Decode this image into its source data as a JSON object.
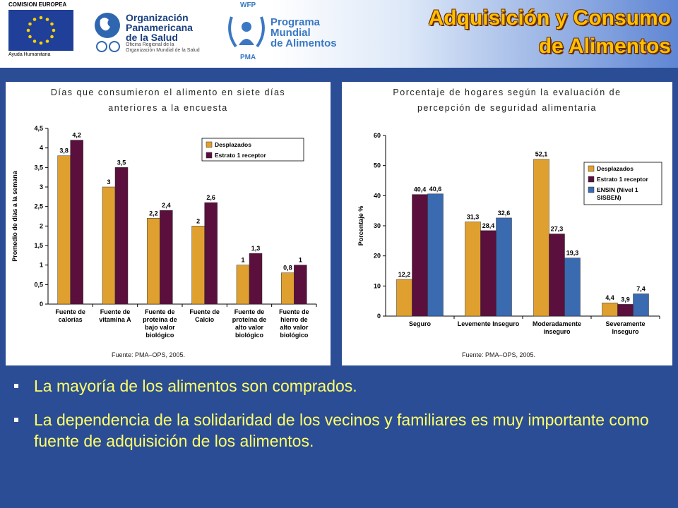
{
  "header": {
    "title_line1": "Adquisición y Consumo",
    "title_line2": "de Alimentos",
    "logos": {
      "eu_top": "COMISION EUROPEA",
      "eu_bottom": "Ayuda Humanitaria",
      "ops_line1": "Organización",
      "ops_line2": "Panamericana",
      "ops_line3": "de la Salud",
      "ops_sub1": "Oficina Regional de la",
      "ops_sub2": "Organización Mundial de la Salud",
      "wfp_top": "WFP",
      "wfp_line1": "Programa",
      "wfp_line2": "Mundial",
      "wfp_line3": "de Alimentos",
      "wfp_bottom": "PMA"
    },
    "colors": {
      "title": "#ffc000",
      "background": "#2b4d96",
      "bullet_text": "#ffff66"
    }
  },
  "chart_data": [
    {
      "type": "bar",
      "title_line1": "Días que consumieron el alimento en siete días",
      "title_line2": "anteriores a la encuesta",
      "ylabel": "Promedio de días a la semana",
      "ylim": [
        0,
        4.5
      ],
      "yticks": [
        "0",
        "0,5",
        "1",
        "1,5",
        "2",
        "2,5",
        "3",
        "3,5",
        "4",
        "4,5"
      ],
      "categories": [
        [
          "Fuente de",
          "calorías"
        ],
        [
          "Fuente de",
          "vitamina A"
        ],
        [
          "Fuente de",
          "proteína de",
          "bajo valor",
          "biológico"
        ],
        [
          "Fuente de",
          "Calcio"
        ],
        [
          "Fuente de",
          "proteína de",
          "alto valor",
          "biológico"
        ],
        [
          "Fuente de",
          "hierro de",
          "alto valor",
          "biológico"
        ]
      ],
      "series": [
        {
          "name": "Desplazados",
          "color": "#e0a030",
          "values": [
            3.8,
            3,
            2.2,
            2,
            1,
            0.8
          ],
          "labels": [
            "3,8",
            "3",
            "2,2",
            "2",
            "1",
            "0,8"
          ]
        },
        {
          "name": "Estrato 1 receptor",
          "color": "#5a0f3c",
          "values": [
            4.2,
            3.5,
            2.4,
            2.6,
            1.3,
            1
          ],
          "labels": [
            "4,2",
            "3,5",
            "2,4",
            "2,6",
            "1,3",
            "1"
          ]
        }
      ],
      "legend": "top-right",
      "source": "Fuente: PMA–OPS, 2005."
    },
    {
      "type": "bar",
      "title_line1": "Porcentaje de hogares según la evaluación de",
      "title_line2": "percepción de seguridad alimentaria",
      "ylabel": "Porcentaje %",
      "ylim": [
        0,
        60
      ],
      "yticks": [
        "0",
        "10",
        "20",
        "30",
        "40",
        "50",
        "60"
      ],
      "categories": [
        [
          "Seguro"
        ],
        [
          "Levemente Inseguro"
        ],
        [
          "Moderadamente",
          "inseguro"
        ],
        [
          "Severamente",
          "Inseguro"
        ]
      ],
      "series": [
        {
          "name": "Desplazados",
          "color": "#e0a030",
          "values": [
            12.2,
            31.3,
            52.1,
            4.4
          ],
          "labels": [
            "12,2",
            "31,3",
            "52,1",
            "4,4"
          ]
        },
        {
          "name": "Estrato 1 receptor",
          "color": "#5a0f3c",
          "values": [
            40.4,
            28.4,
            27.3,
            3.9
          ],
          "labels": [
            "40,4",
            "28,4",
            "27,3",
            "3,9"
          ]
        },
        {
          "name": "ENSIN (Nivel 1 SISBEN)",
          "legend_lines": [
            "ENSIN (Nivel 1",
            "SISBEN)"
          ],
          "color": "#3a6ab0",
          "values": [
            40.6,
            32.6,
            19.3,
            7.4
          ],
          "labels": [
            "40,6",
            "32,6",
            "19,3",
            "7,4"
          ]
        }
      ],
      "legend": "right",
      "source": "Fuente: PMA–OPS, 2005."
    }
  ],
  "bullets": [
    "La mayoría de los alimentos son comprados.",
    "La dependencia de la solidaridad de los vecinos y familiares es muy importante como fuente de adquisición de los alimentos."
  ]
}
